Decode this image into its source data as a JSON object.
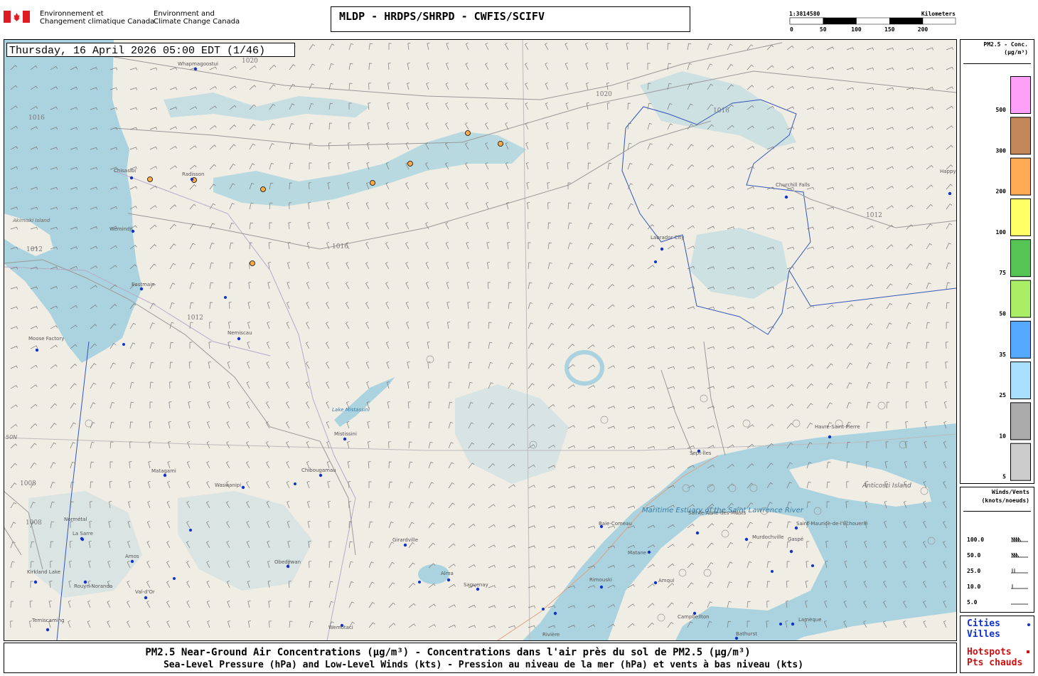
{
  "header": {
    "org_fr": [
      "Environnement et",
      "Changement climatique Canada"
    ],
    "org_en": [
      "Environment and",
      "Climate Change Canada"
    ],
    "title": "MLDP - HRDPS/SHRPD - CWFIS/SCIFV",
    "scale": {
      "ratio": "1:3814580",
      "unit": "Kilometers",
      "ticks": [
        0,
        50,
        100,
        150,
        200
      ]
    }
  },
  "map": {
    "timestamp": "Thursday, 16 April 2026 05:00 EDT (1/46)",
    "cities": [
      "Whapmagoostui",
      "Chisasibi",
      "Radisson",
      "Wemindji",
      "Eastmain",
      "Moose Factory",
      "Nemiscau",
      "Mistissini",
      "Chibougamau",
      "Matagami",
      "Waswanipi",
      "Normétal",
      "La Sarre",
      "Amos",
      "Kirkland Lake",
      "Rouyn-Noranda",
      "Val-d'Or",
      "Obedjiwan",
      "Girardville",
      "Alma",
      "Saguenay",
      "Wemotaci",
      "Temiscaming",
      "Rivière",
      "Baie-Comeau",
      "Matane",
      "Rimouski",
      "Amqui",
      "Sainte-Anne-des-Monts",
      "Murdochville",
      "Saint-Maurice-de-l'Échouerie",
      "Gaspé",
      "Campbellton",
      "Bathurst",
      "Lamèque",
      "Sept-Îles",
      "Havre-Saint-Pierre",
      "Labrador City",
      "Churchill Falls",
      "Happy Valley-Goose Bay"
    ],
    "labels": [
      "Anticosti Island",
      "Maritime Estuary of the Saint Lawrence River",
      "Lake Mistassini",
      "Akimiski Island",
      "50N"
    ],
    "isobar_labels": [
      1020,
      1020,
      1016,
      1016,
      1016,
      1012,
      1012,
      1012,
      1008,
      1008
    ]
  },
  "legend": {
    "pm25": {
      "title": [
        "PM2.5 - Conc.",
        "(µg/m³)"
      ],
      "levels": [
        {
          "label": 500,
          "color": "#ffa0f8"
        },
        {
          "label": 300,
          "color": "#c4875a"
        },
        {
          "label": 200,
          "color": "#ffaa55"
        },
        {
          "label": 100,
          "color": "#ffff66"
        },
        {
          "label": 75,
          "color": "#55c455"
        },
        {
          "label": 50,
          "color": "#aaee66"
        },
        {
          "label": 35,
          "color": "#55aaff"
        },
        {
          "label": 25,
          "color": "#aae0ff"
        },
        {
          "label": 10,
          "color": "#aaaaaa"
        },
        {
          "label": 5,
          "color": "#cccccc"
        }
      ]
    },
    "winds": {
      "title": [
        "Winds/Vents",
        "(knots/noeuds)"
      ],
      "speeds": [
        "100.0",
        "50.0",
        "25.0",
        "10.0",
        "5.0"
      ]
    },
    "cities": [
      "Cities",
      "Villes"
    ],
    "hotspots": [
      "Hotspots",
      "Pts chauds"
    ]
  },
  "footer": [
    "PM2.5 Near-Ground Air Concentrations (µg/m³) - Concentrations dans l'air près du sol de PM2.5 (µg/m³)",
    "Sea-Level Pressure (hPa) and Low-Level Winds (kts) - Pression au niveau de la mer (hPa) et vents à bas niveau (kts)"
  ]
}
